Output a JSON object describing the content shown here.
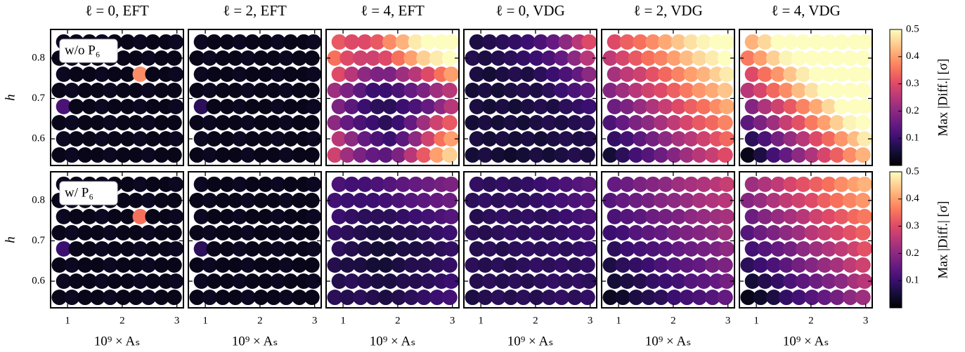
{
  "chart_data": {
    "type": "scatter",
    "column_titles": [
      "ℓ = 0, EFT",
      "ℓ = 2, EFT",
      "ℓ = 4, EFT",
      "ℓ = 0, VDG",
      "ℓ = 2, VDG",
      "ℓ = 4, VDG"
    ],
    "row_labels": [
      "w/o P₆",
      "w/ P₆"
    ],
    "xlabel": "10⁹ × Aₛ",
    "ylabel": "h",
    "xlim": [
      0.69,
      3.12
    ],
    "ylim": [
      0.534,
      0.871
    ],
    "xticks": [
      1,
      2,
      3
    ],
    "yticks": [
      0.6,
      0.7,
      0.8
    ],
    "colorbar": {
      "label": "Max |Diff.| [σ]",
      "lim": [
        0,
        0.5
      ],
      "ticks": [
        0.1,
        0.2,
        0.3,
        0.4,
        0.5
      ],
      "colormap": "magma"
    },
    "x": [
      0.85,
      1.08,
      1.32,
      1.55,
      1.78,
      2.02,
      2.25,
      2.48,
      2.72,
      2.95,
      0.93,
      1.16,
      1.4,
      1.63,
      1.86,
      2.1,
      2.33,
      2.56,
      2.8,
      2.98,
      0.85,
      1.08,
      1.32,
      1.55,
      1.78,
      2.02,
      2.25,
      2.48,
      2.72,
      2.95,
      0.93,
      1.16,
      1.4,
      1.63,
      1.86,
      2.1,
      2.33,
      2.56,
      2.8,
      2.98,
      0.85,
      1.08,
      1.32,
      1.55,
      1.78,
      2.02,
      2.25,
      2.48,
      2.72,
      2.95,
      0.93,
      1.16,
      1.4,
      1.63,
      1.86,
      2.1,
      2.33,
      2.56,
      2.8,
      2.98,
      0.85,
      1.08,
      1.32,
      1.55,
      1.78,
      2.02,
      2.25,
      2.48,
      2.72,
      2.95,
      0.93,
      1.16,
      1.4,
      1.63,
      1.86,
      2.1,
      2.33,
      2.56,
      2.8,
      2.98
    ],
    "y": [
      0.56,
      0.56,
      0.56,
      0.56,
      0.56,
      0.56,
      0.56,
      0.56,
      0.56,
      0.56,
      0.6,
      0.6,
      0.6,
      0.6,
      0.6,
      0.6,
      0.6,
      0.6,
      0.6,
      0.6,
      0.64,
      0.64,
      0.64,
      0.64,
      0.64,
      0.64,
      0.64,
      0.64,
      0.64,
      0.64,
      0.68,
      0.68,
      0.68,
      0.68,
      0.68,
      0.68,
      0.68,
      0.68,
      0.68,
      0.68,
      0.72,
      0.72,
      0.72,
      0.72,
      0.72,
      0.72,
      0.72,
      0.72,
      0.72,
      0.72,
      0.76,
      0.76,
      0.76,
      0.76,
      0.76,
      0.76,
      0.76,
      0.76,
      0.76,
      0.76,
      0.8,
      0.8,
      0.8,
      0.8,
      0.8,
      0.8,
      0.8,
      0.8,
      0.8,
      0.8,
      0.84,
      0.84,
      0.84,
      0.84,
      0.84,
      0.84,
      0.84,
      0.84,
      0.84,
      0.84
    ],
    "panels": [
      [
        [
          0.02,
          0.03,
          0.02,
          0.02,
          0.03,
          0.02,
          0.02,
          0.03,
          0.02,
          0.02,
          0.03,
          0.02,
          0.02,
          0.03,
          0.02,
          0.02,
          0.03,
          0.02,
          0.02,
          0.03,
          0.02,
          0.03,
          0.02,
          0.02,
          0.03,
          0.02,
          0.02,
          0.03,
          0.02,
          0.02,
          0.12,
          0.02,
          0.02,
          0.03,
          0.02,
          0.02,
          0.03,
          0.02,
          0.02,
          0.03,
          0.02,
          0.03,
          0.02,
          0.02,
          0.03,
          0.02,
          0.02,
          0.03,
          0.02,
          0.02,
          0.03,
          0.02,
          0.02,
          0.03,
          0.02,
          0.02,
          0.38,
          0.02,
          0.02,
          0.03,
          0.02,
          0.03,
          0.02,
          0.02,
          0.03,
          0.02,
          0.02,
          0.03,
          0.02,
          0.02,
          0.03,
          0.02,
          0.02,
          0.03,
          0.02,
          0.02,
          0.03,
          0.02,
          0.02,
          0.03
        ],
        [
          0.02,
          0.03,
          0.02,
          0.02,
          0.03,
          0.02,
          0.02,
          0.03,
          0.02,
          0.02,
          0.03,
          0.02,
          0.02,
          0.03,
          0.02,
          0.02,
          0.03,
          0.02,
          0.02,
          0.03,
          0.02,
          0.03,
          0.02,
          0.02,
          0.03,
          0.02,
          0.02,
          0.03,
          0.02,
          0.02,
          0.08,
          0.02,
          0.02,
          0.03,
          0.02,
          0.02,
          0.03,
          0.02,
          0.02,
          0.03,
          0.02,
          0.03,
          0.02,
          0.02,
          0.03,
          0.02,
          0.02,
          0.03,
          0.02,
          0.02,
          0.03,
          0.02,
          0.02,
          0.03,
          0.02,
          0.02,
          0.03,
          0.02,
          0.02,
          0.03,
          0.02,
          0.03,
          0.02,
          0.02,
          0.03,
          0.02,
          0.02,
          0.03,
          0.02,
          0.02,
          0.03,
          0.02,
          0.02,
          0.03,
          0.02,
          0.02,
          0.03,
          0.02,
          0.02,
          0.03
        ],
        [
          0.28,
          0.22,
          0.18,
          0.15,
          0.14,
          0.18,
          0.25,
          0.32,
          0.4,
          0.45,
          0.25,
          0.2,
          0.15,
          0.12,
          0.1,
          0.14,
          0.2,
          0.28,
          0.35,
          0.4,
          0.2,
          0.15,
          0.12,
          0.1,
          0.08,
          0.1,
          0.15,
          0.22,
          0.28,
          0.32,
          0.18,
          0.14,
          0.1,
          0.08,
          0.08,
          0.1,
          0.12,
          0.15,
          0.2,
          0.25,
          0.22,
          0.18,
          0.14,
          0.1,
          0.1,
          0.12,
          0.15,
          0.18,
          0.22,
          0.25,
          0.3,
          0.25,
          0.2,
          0.18,
          0.18,
          0.22,
          0.25,
          0.3,
          0.35,
          0.4,
          0.35,
          0.3,
          0.28,
          0.28,
          0.3,
          0.35,
          0.4,
          0.45,
          0.48,
          0.5,
          0.32,
          0.3,
          0.3,
          0.32,
          0.38,
          0.42,
          0.48,
          0.5,
          0.55,
          0.58
        ],
        [
          0.05,
          0.06,
          0.05,
          0.04,
          0.05,
          0.06,
          0.05,
          0.06,
          0.07,
          0.06,
          0.06,
          0.05,
          0.06,
          0.05,
          0.06,
          0.05,
          0.06,
          0.07,
          0.06,
          0.07,
          0.05,
          0.06,
          0.05,
          0.06,
          0.05,
          0.06,
          0.07,
          0.06,
          0.07,
          0.08,
          0.06,
          0.05,
          0.06,
          0.05,
          0.06,
          0.07,
          0.06,
          0.08,
          0.09,
          0.1,
          0.05,
          0.06,
          0.05,
          0.06,
          0.07,
          0.06,
          0.08,
          0.1,
          0.12,
          0.14,
          0.06,
          0.05,
          0.06,
          0.07,
          0.06,
          0.08,
          0.1,
          0.12,
          0.15,
          0.2,
          0.07,
          0.06,
          0.07,
          0.08,
          0.09,
          0.1,
          0.12,
          0.15,
          0.2,
          0.25,
          0.06,
          0.07,
          0.08,
          0.09,
          0.1,
          0.12,
          0.15,
          0.2,
          0.25,
          0.3
        ],
        [
          0.05,
          0.08,
          0.11,
          0.13,
          0.16,
          0.19,
          0.22,
          0.25,
          0.27,
          0.3,
          0.09,
          0.11,
          0.14,
          0.17,
          0.2,
          0.23,
          0.25,
          0.28,
          0.31,
          0.34,
          0.12,
          0.15,
          0.18,
          0.2,
          0.23,
          0.26,
          0.29,
          0.32,
          0.34,
          0.37,
          0.16,
          0.18,
          0.21,
          0.24,
          0.27,
          0.3,
          0.33,
          0.35,
          0.38,
          0.41,
          0.19,
          0.22,
          0.25,
          0.28,
          0.3,
          0.33,
          0.36,
          0.39,
          0.41,
          0.44,
          0.23,
          0.26,
          0.28,
          0.31,
          0.34,
          0.37,
          0.4,
          0.42,
          0.45,
          0.48,
          0.26,
          0.29,
          0.32,
          0.35,
          0.37,
          0.4,
          0.43,
          0.46,
          0.48,
          0.51,
          0.3,
          0.33,
          0.35,
          0.38,
          0.41,
          0.44,
          0.47,
          0.49,
          0.52,
          0.55
        ],
        [
          0.02,
          0.06,
          0.11,
          0.15,
          0.2,
          0.24,
          0.29,
          0.33,
          0.38,
          0.42,
          0.08,
          0.12,
          0.17,
          0.21,
          0.25,
          0.3,
          0.34,
          0.39,
          0.43,
          0.48,
          0.14,
          0.18,
          0.22,
          0.27,
          0.31,
          0.36,
          0.4,
          0.45,
          0.49,
          0.54,
          0.19,
          0.24,
          0.28,
          0.32,
          0.37,
          0.41,
          0.46,
          0.5,
          0.55,
          0.59,
          0.25,
          0.29,
          0.34,
          0.38,
          0.43,
          0.47,
          0.52,
          0.56,
          0.61,
          0.65,
          0.3,
          0.35,
          0.39,
          0.44,
          0.48,
          0.53,
          0.57,
          0.62,
          0.66,
          0.7,
          0.36,
          0.4,
          0.45,
          0.49,
          0.54,
          0.58,
          0.63,
          0.67,
          0.71,
          0.76,
          0.42,
          0.46,
          0.51,
          0.55,
          0.6,
          0.64,
          0.68,
          0.73,
          0.77,
          0.82
        ]
      ],
      [
        [
          0.02,
          0.03,
          0.02,
          0.02,
          0.03,
          0.02,
          0.02,
          0.03,
          0.02,
          0.02,
          0.03,
          0.02,
          0.02,
          0.03,
          0.02,
          0.02,
          0.03,
          0.02,
          0.02,
          0.03,
          0.02,
          0.03,
          0.02,
          0.02,
          0.03,
          0.02,
          0.02,
          0.03,
          0.02,
          0.02,
          0.1,
          0.02,
          0.02,
          0.03,
          0.02,
          0.02,
          0.03,
          0.02,
          0.02,
          0.03,
          0.02,
          0.03,
          0.02,
          0.02,
          0.03,
          0.02,
          0.02,
          0.03,
          0.02,
          0.02,
          0.03,
          0.02,
          0.02,
          0.03,
          0.02,
          0.02,
          0.35,
          0.02,
          0.02,
          0.03,
          0.02,
          0.03,
          0.02,
          0.02,
          0.03,
          0.02,
          0.02,
          0.03,
          0.02,
          0.02,
          0.03,
          0.02,
          0.02,
          0.03,
          0.02,
          0.02,
          0.03,
          0.02,
          0.02,
          0.03
        ],
        [
          0.02,
          0.03,
          0.02,
          0.02,
          0.03,
          0.02,
          0.02,
          0.03,
          0.02,
          0.02,
          0.03,
          0.02,
          0.02,
          0.03,
          0.02,
          0.02,
          0.03,
          0.02,
          0.02,
          0.03,
          0.02,
          0.03,
          0.02,
          0.02,
          0.03,
          0.02,
          0.02,
          0.03,
          0.02,
          0.02,
          0.08,
          0.02,
          0.02,
          0.03,
          0.02,
          0.02,
          0.03,
          0.02,
          0.02,
          0.03,
          0.02,
          0.03,
          0.02,
          0.02,
          0.03,
          0.02,
          0.02,
          0.03,
          0.02,
          0.02,
          0.03,
          0.02,
          0.02,
          0.03,
          0.02,
          0.02,
          0.03,
          0.02,
          0.02,
          0.03,
          0.02,
          0.03,
          0.02,
          0.02,
          0.03,
          0.02,
          0.02,
          0.03,
          0.02,
          0.02,
          0.03,
          0.02,
          0.02,
          0.03,
          0.02,
          0.02,
          0.03,
          0.02,
          0.02,
          0.03
        ],
        [
          0.08,
          0.07,
          0.08,
          0.07,
          0.06,
          0.07,
          0.08,
          0.09,
          0.1,
          0.11,
          0.07,
          0.08,
          0.07,
          0.06,
          0.06,
          0.07,
          0.07,
          0.08,
          0.09,
          0.1,
          0.07,
          0.06,
          0.06,
          0.05,
          0.05,
          0.06,
          0.07,
          0.07,
          0.08,
          0.09,
          0.08,
          0.07,
          0.06,
          0.05,
          0.05,
          0.06,
          0.06,
          0.07,
          0.08,
          0.09,
          0.09,
          0.08,
          0.07,
          0.06,
          0.06,
          0.07,
          0.07,
          0.08,
          0.09,
          0.1,
          0.1,
          0.09,
          0.08,
          0.08,
          0.08,
          0.09,
          0.1,
          0.11,
          0.12,
          0.13,
          0.11,
          0.1,
          0.1,
          0.1,
          0.11,
          0.12,
          0.13,
          0.14,
          0.15,
          0.16,
          0.12,
          0.11,
          0.11,
          0.12,
          0.13,
          0.14,
          0.15,
          0.16,
          0.17,
          0.18
        ],
        [
          0.06,
          0.07,
          0.08,
          0.07,
          0.08,
          0.07,
          0.08,
          0.09,
          0.08,
          0.09,
          0.07,
          0.08,
          0.07,
          0.08,
          0.07,
          0.08,
          0.09,
          0.08,
          0.09,
          0.08,
          0.08,
          0.07,
          0.08,
          0.07,
          0.08,
          0.09,
          0.08,
          0.09,
          0.08,
          0.09,
          0.07,
          0.08,
          0.07,
          0.08,
          0.09,
          0.08,
          0.09,
          0.08,
          0.09,
          0.1,
          0.08,
          0.07,
          0.08,
          0.09,
          0.08,
          0.09,
          0.08,
          0.09,
          0.1,
          0.11,
          0.07,
          0.08,
          0.09,
          0.08,
          0.09,
          0.08,
          0.09,
          0.1,
          0.11,
          0.12,
          0.08,
          0.09,
          0.08,
          0.09,
          0.08,
          0.09,
          0.1,
          0.11,
          0.12,
          0.13,
          0.09,
          0.08,
          0.09,
          0.08,
          0.09,
          0.1,
          0.11,
          0.12,
          0.13,
          0.14
        ],
        [
          0.03,
          0.04,
          0.06,
          0.07,
          0.08,
          0.1,
          0.11,
          0.12,
          0.13,
          0.15,
          0.05,
          0.06,
          0.07,
          0.09,
          0.1,
          0.11,
          0.13,
          0.14,
          0.15,
          0.17,
          0.06,
          0.08,
          0.09,
          0.1,
          0.12,
          0.13,
          0.14,
          0.15,
          0.17,
          0.18,
          0.08,
          0.1,
          0.11,
          0.12,
          0.13,
          0.15,
          0.16,
          0.17,
          0.18,
          0.2,
          0.1,
          0.11,
          0.13,
          0.14,
          0.15,
          0.17,
          0.18,
          0.19,
          0.2,
          0.22,
          0.12,
          0.13,
          0.14,
          0.16,
          0.17,
          0.18,
          0.2,
          0.21,
          0.22,
          0.23,
          0.13,
          0.15,
          0.16,
          0.17,
          0.19,
          0.2,
          0.21,
          0.23,
          0.24,
          0.25,
          0.15,
          0.16,
          0.18,
          0.19,
          0.2,
          0.22,
          0.23,
          0.24,
          0.25,
          0.27
        ],
        [
          0.02,
          0.04,
          0.06,
          0.09,
          0.11,
          0.13,
          0.15,
          0.17,
          0.2,
          0.22,
          0.05,
          0.07,
          0.09,
          0.12,
          0.14,
          0.16,
          0.18,
          0.2,
          0.23,
          0.25,
          0.08,
          0.1,
          0.12,
          0.14,
          0.17,
          0.19,
          0.21,
          0.23,
          0.26,
          0.28,
          0.11,
          0.13,
          0.15,
          0.17,
          0.2,
          0.22,
          0.24,
          0.26,
          0.28,
          0.31,
          0.13,
          0.16,
          0.18,
          0.2,
          0.22,
          0.25,
          0.27,
          0.29,
          0.31,
          0.33,
          0.16,
          0.19,
          0.21,
          0.23,
          0.25,
          0.28,
          0.3,
          0.32,
          0.34,
          0.36,
          0.19,
          0.21,
          0.24,
          0.26,
          0.28,
          0.3,
          0.33,
          0.35,
          0.37,
          0.39,
          0.22,
          0.24,
          0.26,
          0.29,
          0.31,
          0.33,
          0.35,
          0.38,
          0.4,
          0.42
        ]
      ]
    ]
  }
}
